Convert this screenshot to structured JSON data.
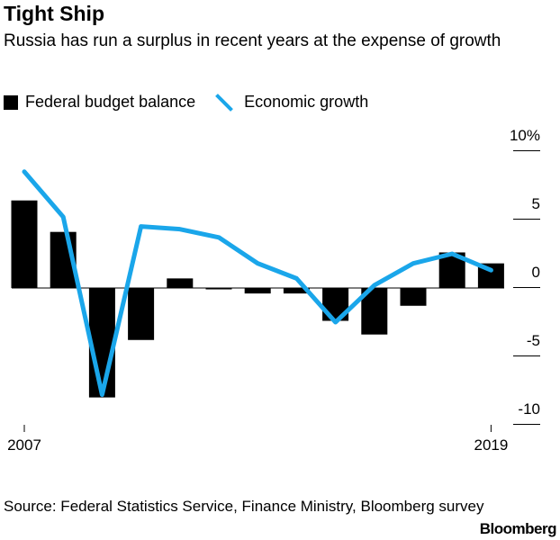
{
  "title": "Tight Ship",
  "subtitle": "Russia has run a surplus in recent years at the expense of growth",
  "source": "Source: Federal Statistics Service, Finance Ministry, Bloomberg survey",
  "logo": "Bloomberg",
  "chart_data": {
    "type": "bar+line",
    "x": [
      2007,
      2008,
      2009,
      2010,
      2011,
      2012,
      2013,
      2014,
      2015,
      2016,
      2017,
      2018,
      2019
    ],
    "xtick_labels": [
      "2007",
      "2019"
    ],
    "ylim": [
      -10,
      10
    ],
    "yticks": [
      10,
      5,
      0,
      -5,
      -10
    ],
    "ytick_labels": [
      "10%",
      "5",
      "0",
      "-5",
      "-10"
    ],
    "legend_placement": "top-left",
    "series": [
      {
        "name": "Federal budget balance",
        "type": "bar",
        "color": "#000000",
        "values": [
          6.4,
          4.1,
          -8.0,
          -3.8,
          0.7,
          -0.1,
          -0.4,
          -0.4,
          -2.4,
          -3.4,
          -1.3,
          2.6,
          1.8
        ]
      },
      {
        "name": "Economic growth",
        "type": "line",
        "color": "#1aa6ea",
        "values": [
          8.5,
          5.2,
          -7.8,
          4.5,
          4.3,
          3.7,
          1.8,
          0.7,
          -2.5,
          0.2,
          1.8,
          2.5,
          1.3
        ]
      }
    ]
  }
}
